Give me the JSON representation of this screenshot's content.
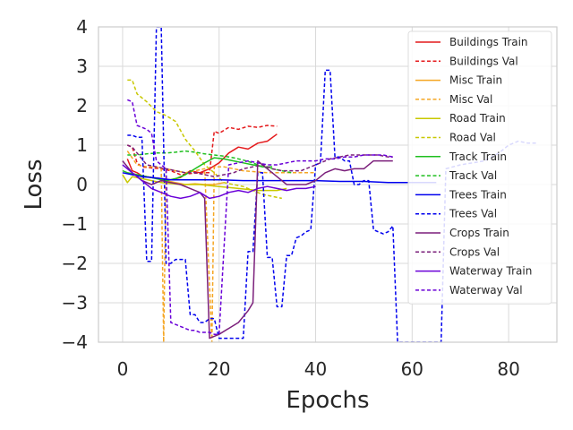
{
  "chart_data": {
    "type": "line",
    "xlabel": "Epochs",
    "ylabel": "Loss",
    "xlim": [
      -5,
      90
    ],
    "ylim": [
      -4,
      4
    ],
    "xticks": [
      0,
      20,
      40,
      60,
      80
    ],
    "yticks": [
      -4,
      -3,
      -2,
      -1,
      0,
      1,
      2,
      3,
      4
    ],
    "xtick_labels": [
      "0",
      "20",
      "40",
      "60",
      "80"
    ],
    "ytick_labels": [
      "−4",
      "−3",
      "−2",
      "−1",
      "0",
      "1",
      "2",
      "3",
      "4"
    ],
    "grid": true,
    "legend_position": "upper right",
    "series": [
      {
        "name": "Buildings Train",
        "color": "#e41a1c",
        "dashed": false,
        "x": [
          1,
          2,
          3,
          4,
          6,
          8,
          10,
          12,
          14,
          16,
          18,
          20,
          22,
          24,
          26,
          28,
          30,
          32
        ],
        "y": [
          0.65,
          0.35,
          0.3,
          0.22,
          0.18,
          0.15,
          0.12,
          0.18,
          0.35,
          0.3,
          0.4,
          0.55,
          0.8,
          0.95,
          0.9,
          1.05,
          1.1,
          1.28
        ]
      },
      {
        "name": "Buildings Val",
        "color": "#e41a1c",
        "dashed": true,
        "x": [
          1,
          2,
          3,
          4,
          6,
          8,
          10,
          12,
          14,
          16,
          18,
          19,
          20,
          22,
          24,
          26,
          28,
          30,
          32
        ],
        "y": [
          1.0,
          0.95,
          0.55,
          0.45,
          0.42,
          0.4,
          0.35,
          0.25,
          0.28,
          0.3,
          0.3,
          1.35,
          1.3,
          1.45,
          1.4,
          1.48,
          1.45,
          1.5,
          1.48
        ]
      },
      {
        "name": "Misc Train",
        "color": "#f5a623",
        "dashed": false,
        "x": [
          1,
          3,
          5,
          7,
          9,
          11,
          13,
          15,
          17,
          19,
          21
        ],
        "y": [
          0.3,
          0.25,
          0.2,
          0.15,
          0.1,
          0.05,
          0.0,
          0.02,
          0.0,
          0.0,
          0.05
        ]
      },
      {
        "name": "Misc Val",
        "color": "#f5a623",
        "dashed": true,
        "x": [
          1,
          3,
          5,
          7,
          8,
          8.5,
          9,
          11,
          13,
          15,
          17,
          18.5,
          19,
          21,
          23,
          25,
          30,
          35,
          40
        ],
        "y": [
          0.85,
          0.5,
          0.45,
          0.45,
          0.4,
          -4.0,
          0.4,
          0.35,
          0.3,
          0.35,
          0.4,
          -4.0,
          0.45,
          0.45,
          0.4,
          0.35,
          0.3,
          0.3,
          0.3
        ]
      },
      {
        "name": "Road Train",
        "color": "#c8c800",
        "dashed": false,
        "x": [
          0,
          1,
          2,
          4,
          6,
          8,
          12,
          16,
          20,
          24,
          28,
          32,
          34
        ],
        "y": [
          0.25,
          0.05,
          0.2,
          0.15,
          0.1,
          0.05,
          0.0,
          0.0,
          -0.05,
          -0.1,
          -0.15,
          -0.15,
          -0.1
        ]
      },
      {
        "name": "Road Val",
        "color": "#c8c800",
        "dashed": true,
        "x": [
          1,
          2,
          3,
          5,
          7,
          9,
          11,
          13,
          15,
          17,
          19,
          21,
          23,
          25,
          27,
          29,
          31,
          33
        ],
        "y": [
          2.65,
          2.65,
          2.3,
          2.1,
          1.85,
          1.75,
          1.6,
          1.15,
          0.85,
          0.5,
          0.3,
          0.05,
          0.0,
          -0.05,
          -0.15,
          -0.25,
          -0.3,
          -0.35
        ]
      },
      {
        "name": "Track Train",
        "color": "#1fbf1f",
        "dashed": false,
        "x": [
          0,
          1,
          3,
          5,
          7,
          9,
          11,
          13,
          15,
          17,
          19,
          21,
          23,
          25,
          27,
          29,
          31
        ],
        "y": [
          0.35,
          0.3,
          0.25,
          0.2,
          0.15,
          0.1,
          0.15,
          0.25,
          0.4,
          0.55,
          0.68,
          0.65,
          0.6,
          0.55,
          0.5,
          0.45,
          0.45
        ]
      },
      {
        "name": "Track Val",
        "color": "#1fbf1f",
        "dashed": true,
        "x": [
          1,
          3,
          5,
          7,
          9,
          11,
          13,
          15,
          17,
          19,
          21,
          23,
          25,
          27,
          29,
          31,
          33,
          35
        ],
        "y": [
          0.75,
          0.75,
          0.78,
          0.8,
          0.8,
          0.82,
          0.85,
          0.82,
          0.78,
          0.75,
          0.72,
          0.68,
          0.62,
          0.55,
          0.45,
          0.4,
          0.35,
          0.3
        ]
      },
      {
        "name": "Trees Train",
        "color": "#0000ee",
        "dashed": false,
        "x": [
          0,
          2,
          4,
          6,
          8,
          10,
          15,
          20,
          25,
          30,
          35,
          40,
          45,
          50,
          55,
          60,
          65
        ],
        "y": [
          0.3,
          0.25,
          0.2,
          0.18,
          0.15,
          0.12,
          0.12,
          0.12,
          0.1,
          0.1,
          0.1,
          0.1,
          0.08,
          0.08,
          0.05,
          0.05,
          0.05
        ]
      },
      {
        "name": "Trees Val",
        "color": "#0000ee",
        "dashed": true,
        "x": [
          1,
          2,
          3,
          4,
          5,
          6,
          7,
          8,
          9,
          10,
          11,
          13,
          14,
          15,
          16,
          17,
          18,
          19,
          20,
          21,
          22,
          23,
          24,
          25,
          26,
          27,
          28,
          29,
          30,
          31,
          32,
          33,
          34,
          35,
          36,
          37,
          38,
          39,
          40,
          41,
          42,
          43,
          44,
          45,
          46,
          47,
          48,
          49,
          50,
          51,
          52,
          53,
          54,
          55,
          56,
          57,
          66,
          67,
          70,
          75,
          78,
          80,
          82,
          84,
          86
        ],
        "y": [
          1.25,
          1.25,
          1.2,
          1.2,
          -1.95,
          -1.95,
          4.0,
          4.0,
          -2.0,
          -2.0,
          -1.9,
          -1.9,
          -3.3,
          -3.3,
          -3.5,
          -3.5,
          -3.4,
          -3.4,
          -3.9,
          -3.9,
          -3.9,
          -3.9,
          -3.9,
          -3.9,
          -1.7,
          -1.7,
          0.3,
          0.3,
          -1.85,
          -1.85,
          -3.1,
          -3.1,
          -1.8,
          -1.8,
          -1.35,
          -1.3,
          -1.2,
          -1.15,
          0.5,
          0.55,
          2.9,
          2.9,
          0.7,
          0.7,
          0.6,
          0.6,
          0.0,
          0.0,
          0.1,
          0.1,
          -1.15,
          -1.2,
          -1.25,
          -1.2,
          -1.05,
          -4.0,
          -4.0,
          0.4,
          0.5,
          0.6,
          0.8,
          1.0,
          1.1,
          1.05,
          1.05
        ]
      },
      {
        "name": "Crops Train",
        "color": "#7b1f7b",
        "dashed": false,
        "x": [
          0,
          2,
          4,
          6,
          8,
          10,
          12,
          14,
          16,
          17,
          18,
          19,
          20,
          22,
          24,
          26,
          27,
          28,
          30,
          32,
          34,
          36,
          38,
          40,
          42,
          44,
          46,
          48,
          50,
          52,
          54,
          56
        ],
        "y": [
          0.6,
          0.3,
          0.1,
          0.0,
          0.1,
          0.05,
          0.0,
          -0.1,
          -0.2,
          -0.35,
          -3.9,
          -3.85,
          -3.8,
          -3.65,
          -3.5,
          -3.2,
          -3.0,
          0.6,
          0.4,
          0.2,
          0.0,
          0.0,
          0.0,
          0.1,
          0.3,
          0.4,
          0.35,
          0.4,
          0.4,
          0.6,
          0.6,
          0.6
        ]
      },
      {
        "name": "Crops Val",
        "color": "#7b1f7b",
        "dashed": true,
        "x": [
          1,
          2,
          3,
          5,
          7,
          9,
          11,
          13,
          15,
          17,
          19,
          21,
          23,
          25,
          27,
          29,
          31,
          33,
          35,
          37,
          39,
          41,
          43,
          45,
          47,
          49,
          51,
          53,
          55,
          56
        ],
        "y": [
          1.0,
          0.95,
          0.8,
          0.5,
          0.45,
          0.4,
          0.35,
          0.3,
          0.3,
          0.25,
          0.2,
          0.25,
          0.3,
          0.4,
          0.45,
          0.5,
          0.4,
          0.35,
          0.35,
          0.35,
          0.45,
          0.55,
          0.65,
          0.7,
          0.75,
          0.75,
          0.75,
          0.75,
          0.7,
          0.7
        ]
      },
      {
        "name": "Waterway Train",
        "color": "#6a00d8",
        "dashed": false,
        "x": [
          0,
          2,
          4,
          6,
          8,
          10,
          12,
          14,
          16,
          18,
          20,
          22,
          24,
          26,
          28,
          30,
          32,
          34,
          36,
          38,
          40
        ],
        "y": [
          0.5,
          0.3,
          0.1,
          -0.1,
          -0.2,
          -0.3,
          -0.35,
          -0.3,
          -0.2,
          -0.35,
          -0.3,
          -0.2,
          -0.15,
          -0.2,
          -0.1,
          -0.05,
          -0.1,
          -0.15,
          -0.1,
          -0.1,
          -0.05
        ]
      },
      {
        "name": "Waterway Val",
        "color": "#6a00d8",
        "dashed": true,
        "x": [
          1,
          2,
          3,
          4,
          5,
          6,
          7,
          8,
          9,
          10,
          11,
          12,
          13,
          14,
          15,
          16,
          17,
          18,
          19,
          20,
          22,
          24,
          26,
          28,
          30,
          32,
          34,
          36,
          38,
          40,
          42,
          44,
          46,
          48,
          50,
          52,
          54,
          56
        ],
        "y": [
          2.15,
          2.1,
          1.5,
          1.45,
          1.4,
          1.3,
          0.6,
          0.5,
          0.4,
          -3.5,
          -3.55,
          -3.6,
          -3.65,
          -3.7,
          -3.7,
          -3.75,
          -3.75,
          -3.75,
          -3.8,
          -3.8,
          0.5,
          0.55,
          0.6,
          0.55,
          0.5,
          0.5,
          0.55,
          0.6,
          0.6,
          0.6,
          0.65,
          0.65,
          0.7,
          0.7,
          0.75,
          0.75,
          0.75,
          0.7
        ]
      }
    ]
  }
}
